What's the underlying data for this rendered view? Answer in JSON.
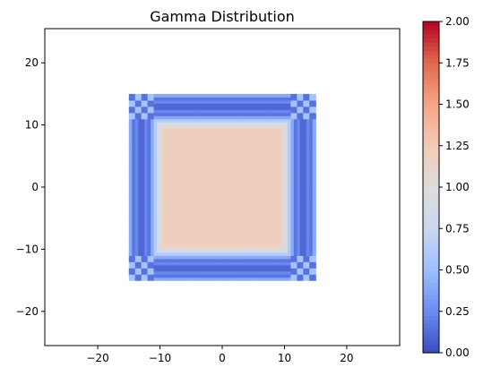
{
  "chart_data": {
    "type": "heatmap",
    "title": "Gamma Distribution",
    "xlabel": "",
    "ylabel": "",
    "xlim": [
      -28.5,
      28.5
    ],
    "ylim": [
      -25.5,
      25.5
    ],
    "x_ticks": [
      -20,
      -10,
      0,
      10,
      20
    ],
    "y_ticks": [
      -20,
      -10,
      0,
      10,
      20
    ],
    "x_tick_labels": [
      "−20",
      "−10",
      "0",
      "10",
      "20"
    ],
    "y_tick_labels": [
      "−20",
      "−10",
      "0",
      "10",
      "20"
    ],
    "colormap": "coolwarm",
    "color_range": [
      0.0,
      2.0
    ],
    "colorbar_ticks": [
      0.0,
      0.25,
      0.5,
      0.75,
      1.0,
      1.25,
      1.5,
      1.75,
      2.0
    ],
    "colorbar_tick_labels": [
      "0.00",
      "0.25",
      "0.50",
      "0.75",
      "1.00",
      "1.25",
      "1.50",
      "1.75",
      "2.00"
    ],
    "grid": false,
    "data_extent": {
      "x": [
        -15,
        15
      ],
      "y": [
        -15,
        15
      ]
    },
    "grid_cells": 60,
    "background_value": null,
    "regions": {
      "inner_plateau": {
        "x": [
          -9.5,
          9.5
        ],
        "y": [
          -9.5,
          9.5
        ],
        "value": 1.2
      },
      "outer_band_value": 1.2,
      "ridge_valley_positions": [
        -13,
        13
      ],
      "ridge_valley_min_value": 0.05
    }
  },
  "colors": {
    "axis": "#000000",
    "background": "#ffffff",
    "coolwarm_stops": [
      "#3b4cc0",
      "#6a8bef",
      "#9ebeff",
      "#c9d7f0",
      "#dddddd",
      "#f2cbb7",
      "#f5a688",
      "#e2694e",
      "#b40426"
    ]
  }
}
